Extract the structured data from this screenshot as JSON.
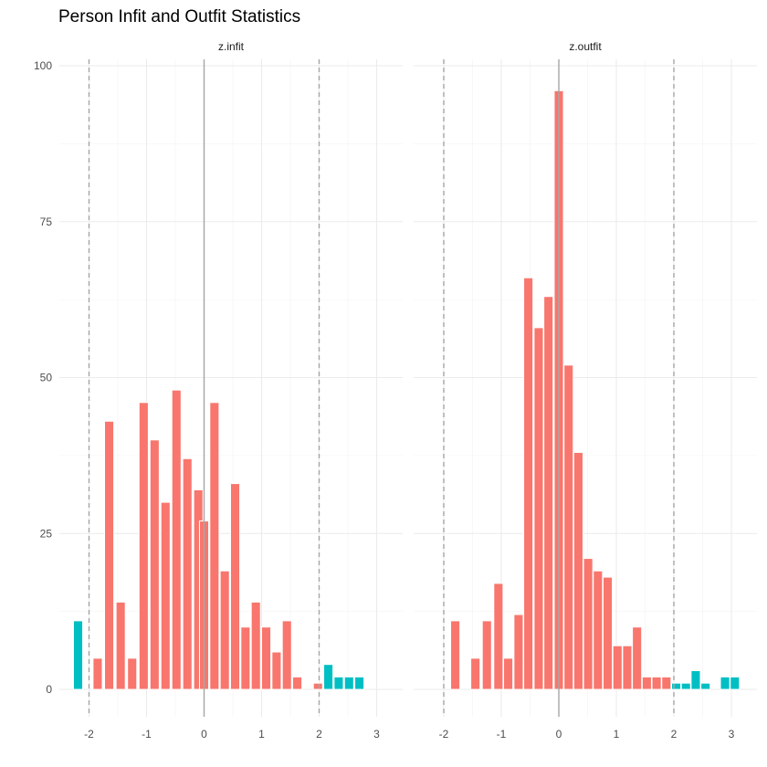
{
  "chart_data": {
    "type": "bar",
    "title": "Person Infit and Outfit Statistics",
    "xlabel": "",
    "ylabel": "",
    "ylim": [
      0,
      100
    ],
    "y_ticks": [
      0,
      25,
      50,
      75,
      100
    ],
    "x_ticks": [
      -2,
      -1,
      0,
      1,
      2,
      3
    ],
    "grid": true,
    "legend": "none",
    "reference_lines": {
      "solid": [
        0
      ],
      "dashed": [
        -2,
        2
      ]
    },
    "colors": {
      "within": "#F8766D",
      "outside": "#00BFC4"
    },
    "bin_width": 0.16,
    "panels": [
      {
        "name": "z.infit",
        "xlim": [
          -2.5,
          3.3
        ],
        "bins": [
          {
            "x": -2.19,
            "count": 11,
            "group": "outside"
          },
          {
            "x": -1.85,
            "count": 5,
            "group": "within"
          },
          {
            "x": -1.65,
            "count": 43,
            "group": "within"
          },
          {
            "x": -1.45,
            "count": 14,
            "group": "within"
          },
          {
            "x": -1.25,
            "count": 5,
            "group": "within"
          },
          {
            "x": -1.05,
            "count": 46,
            "group": "within"
          },
          {
            "x": -0.86,
            "count": 40,
            "group": "within"
          },
          {
            "x": -0.67,
            "count": 30,
            "group": "within"
          },
          {
            "x": -0.48,
            "count": 48,
            "group": "within"
          },
          {
            "x": -0.29,
            "count": 37,
            "group": "within"
          },
          {
            "x": -0.1,
            "count": 32,
            "group": "within"
          },
          {
            "x": 0.0,
            "count": 27,
            "group": "within"
          },
          {
            "x": 0.18,
            "count": 46,
            "group": "within"
          },
          {
            "x": 0.36,
            "count": 19,
            "group": "within"
          },
          {
            "x": 0.54,
            "count": 33,
            "group": "within"
          },
          {
            "x": 0.72,
            "count": 10,
            "group": "within"
          },
          {
            "x": 0.9,
            "count": 14,
            "group": "within"
          },
          {
            "x": 1.08,
            "count": 10,
            "group": "within"
          },
          {
            "x": 1.26,
            "count": 6,
            "group": "within"
          },
          {
            "x": 1.44,
            "count": 11,
            "group": "within"
          },
          {
            "x": 1.62,
            "count": 2,
            "group": "within"
          },
          {
            "x": 1.98,
            "count": 1,
            "group": "within"
          },
          {
            "x": 2.16,
            "count": 4,
            "group": "outside"
          },
          {
            "x": 2.34,
            "count": 2,
            "group": "outside"
          },
          {
            "x": 2.52,
            "count": 2,
            "group": "outside"
          },
          {
            "x": 2.7,
            "count": 2,
            "group": "outside"
          }
        ]
      },
      {
        "name": "z.outfit",
        "xlim": [
          -2.5,
          3.3
        ],
        "bins": [
          {
            "x": -1.8,
            "count": 11,
            "group": "within"
          },
          {
            "x": -1.45,
            "count": 5,
            "group": "within"
          },
          {
            "x": -1.25,
            "count": 11,
            "group": "within"
          },
          {
            "x": -1.05,
            "count": 17,
            "group": "within"
          },
          {
            "x": -0.88,
            "count": 5,
            "group": "within"
          },
          {
            "x": -0.7,
            "count": 12,
            "group": "within"
          },
          {
            "x": -0.53,
            "count": 66,
            "group": "within"
          },
          {
            "x": -0.35,
            "count": 58,
            "group": "within"
          },
          {
            "x": -0.18,
            "count": 63,
            "group": "within"
          },
          {
            "x": 0.0,
            "count": 96,
            "group": "within"
          },
          {
            "x": 0.17,
            "count": 52,
            "group": "within"
          },
          {
            "x": 0.34,
            "count": 38,
            "group": "within"
          },
          {
            "x": 0.51,
            "count": 21,
            "group": "within"
          },
          {
            "x": 0.68,
            "count": 19,
            "group": "within"
          },
          {
            "x": 0.85,
            "count": 18,
            "group": "within"
          },
          {
            "x": 1.02,
            "count": 7,
            "group": "within"
          },
          {
            "x": 1.19,
            "count": 7,
            "group": "within"
          },
          {
            "x": 1.36,
            "count": 10,
            "group": "within"
          },
          {
            "x": 1.53,
            "count": 2,
            "group": "within"
          },
          {
            "x": 1.7,
            "count": 2,
            "group": "within"
          },
          {
            "x": 1.87,
            "count": 2,
            "group": "within"
          },
          {
            "x": 2.04,
            "count": 1,
            "group": "outside"
          },
          {
            "x": 2.21,
            "count": 1,
            "group": "outside"
          },
          {
            "x": 2.38,
            "count": 3,
            "group": "outside"
          },
          {
            "x": 2.55,
            "count": 1,
            "group": "outside"
          },
          {
            "x": 2.89,
            "count": 2,
            "group": "outside"
          },
          {
            "x": 3.06,
            "count": 2,
            "group": "outside"
          }
        ]
      }
    ]
  }
}
